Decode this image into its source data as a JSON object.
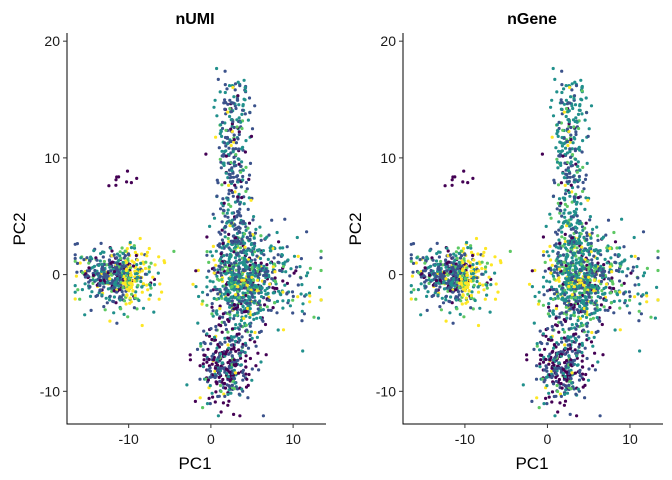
{
  "chart_data": [
    {
      "type": "scatter",
      "title": "nUMI",
      "xlabel": "PC1",
      "ylabel": "PC2",
      "xlim": [
        -17.5,
        14
      ],
      "ylim": [
        -12.8,
        20.7
      ],
      "xticks": [
        -10,
        0,
        10
      ],
      "xtick_labels": [
        "-10",
        "0",
        "10"
      ],
      "yticks": [
        -10,
        0,
        10,
        20
      ],
      "ytick_labels": [
        "-10",
        "0",
        "10",
        "20"
      ],
      "grid": false,
      "legend": "none",
      "color_scale": "viridis",
      "clusters": [
        {
          "name": "left",
          "center": [
            -11.5,
            -0.2
          ],
          "spread": [
            2.4,
            1.3
          ],
          "n": 520
        },
        {
          "name": "center",
          "center": [
            4.0,
            -0.5
          ],
          "spread": [
            2.2,
            2.0
          ],
          "n": 800
        },
        {
          "name": "upper-arm",
          "center": [
            2.8,
            8.0
          ],
          "spread": [
            1.3,
            4.2
          ],
          "n": 380
        },
        {
          "name": "bottom",
          "center": [
            1.8,
            -7.5
          ],
          "spread": [
            1.7,
            1.7
          ],
          "n": 340
        },
        {
          "name": "outlier-group",
          "center": [
            -11.0,
            8.2
          ],
          "spread": [
            1.2,
            0.4
          ],
          "n": 9
        }
      ]
    },
    {
      "type": "scatter",
      "title": "nGene",
      "xlabel": "PC1",
      "ylabel": "PC2",
      "xlim": [
        -17.5,
        14
      ],
      "ylim": [
        -12.8,
        20.7
      ],
      "xticks": [
        -10,
        0,
        10
      ],
      "xtick_labels": [
        "-10",
        "0",
        "10"
      ],
      "yticks": [
        -10,
        0,
        10,
        20
      ],
      "ytick_labels": [
        "-10",
        "0",
        "10",
        "20"
      ],
      "grid": false,
      "legend": "none",
      "color_scale": "viridis",
      "clusters": [
        {
          "name": "left",
          "center": [
            -11.5,
            -0.2
          ],
          "spread": [
            2.4,
            1.3
          ],
          "n": 520
        },
        {
          "name": "center",
          "center": [
            4.0,
            -0.5
          ],
          "spread": [
            2.2,
            2.0
          ],
          "n": 800
        },
        {
          "name": "upper-arm",
          "center": [
            2.8,
            8.0
          ],
          "spread": [
            1.3,
            4.2
          ],
          "n": 380
        },
        {
          "name": "bottom",
          "center": [
            1.8,
            -7.5
          ],
          "spread": [
            1.7,
            1.7
          ],
          "n": 340
        },
        {
          "name": "outlier-group",
          "center": [
            -11.0,
            8.2
          ],
          "spread": [
            1.2,
            0.4
          ],
          "n": 9
        }
      ]
    }
  ],
  "colors": {
    "viridis": [
      "#440154",
      "#3b528b",
      "#21908c",
      "#5dc863",
      "#fde725"
    ],
    "axis": "#000000",
    "background": "#ffffff"
  }
}
